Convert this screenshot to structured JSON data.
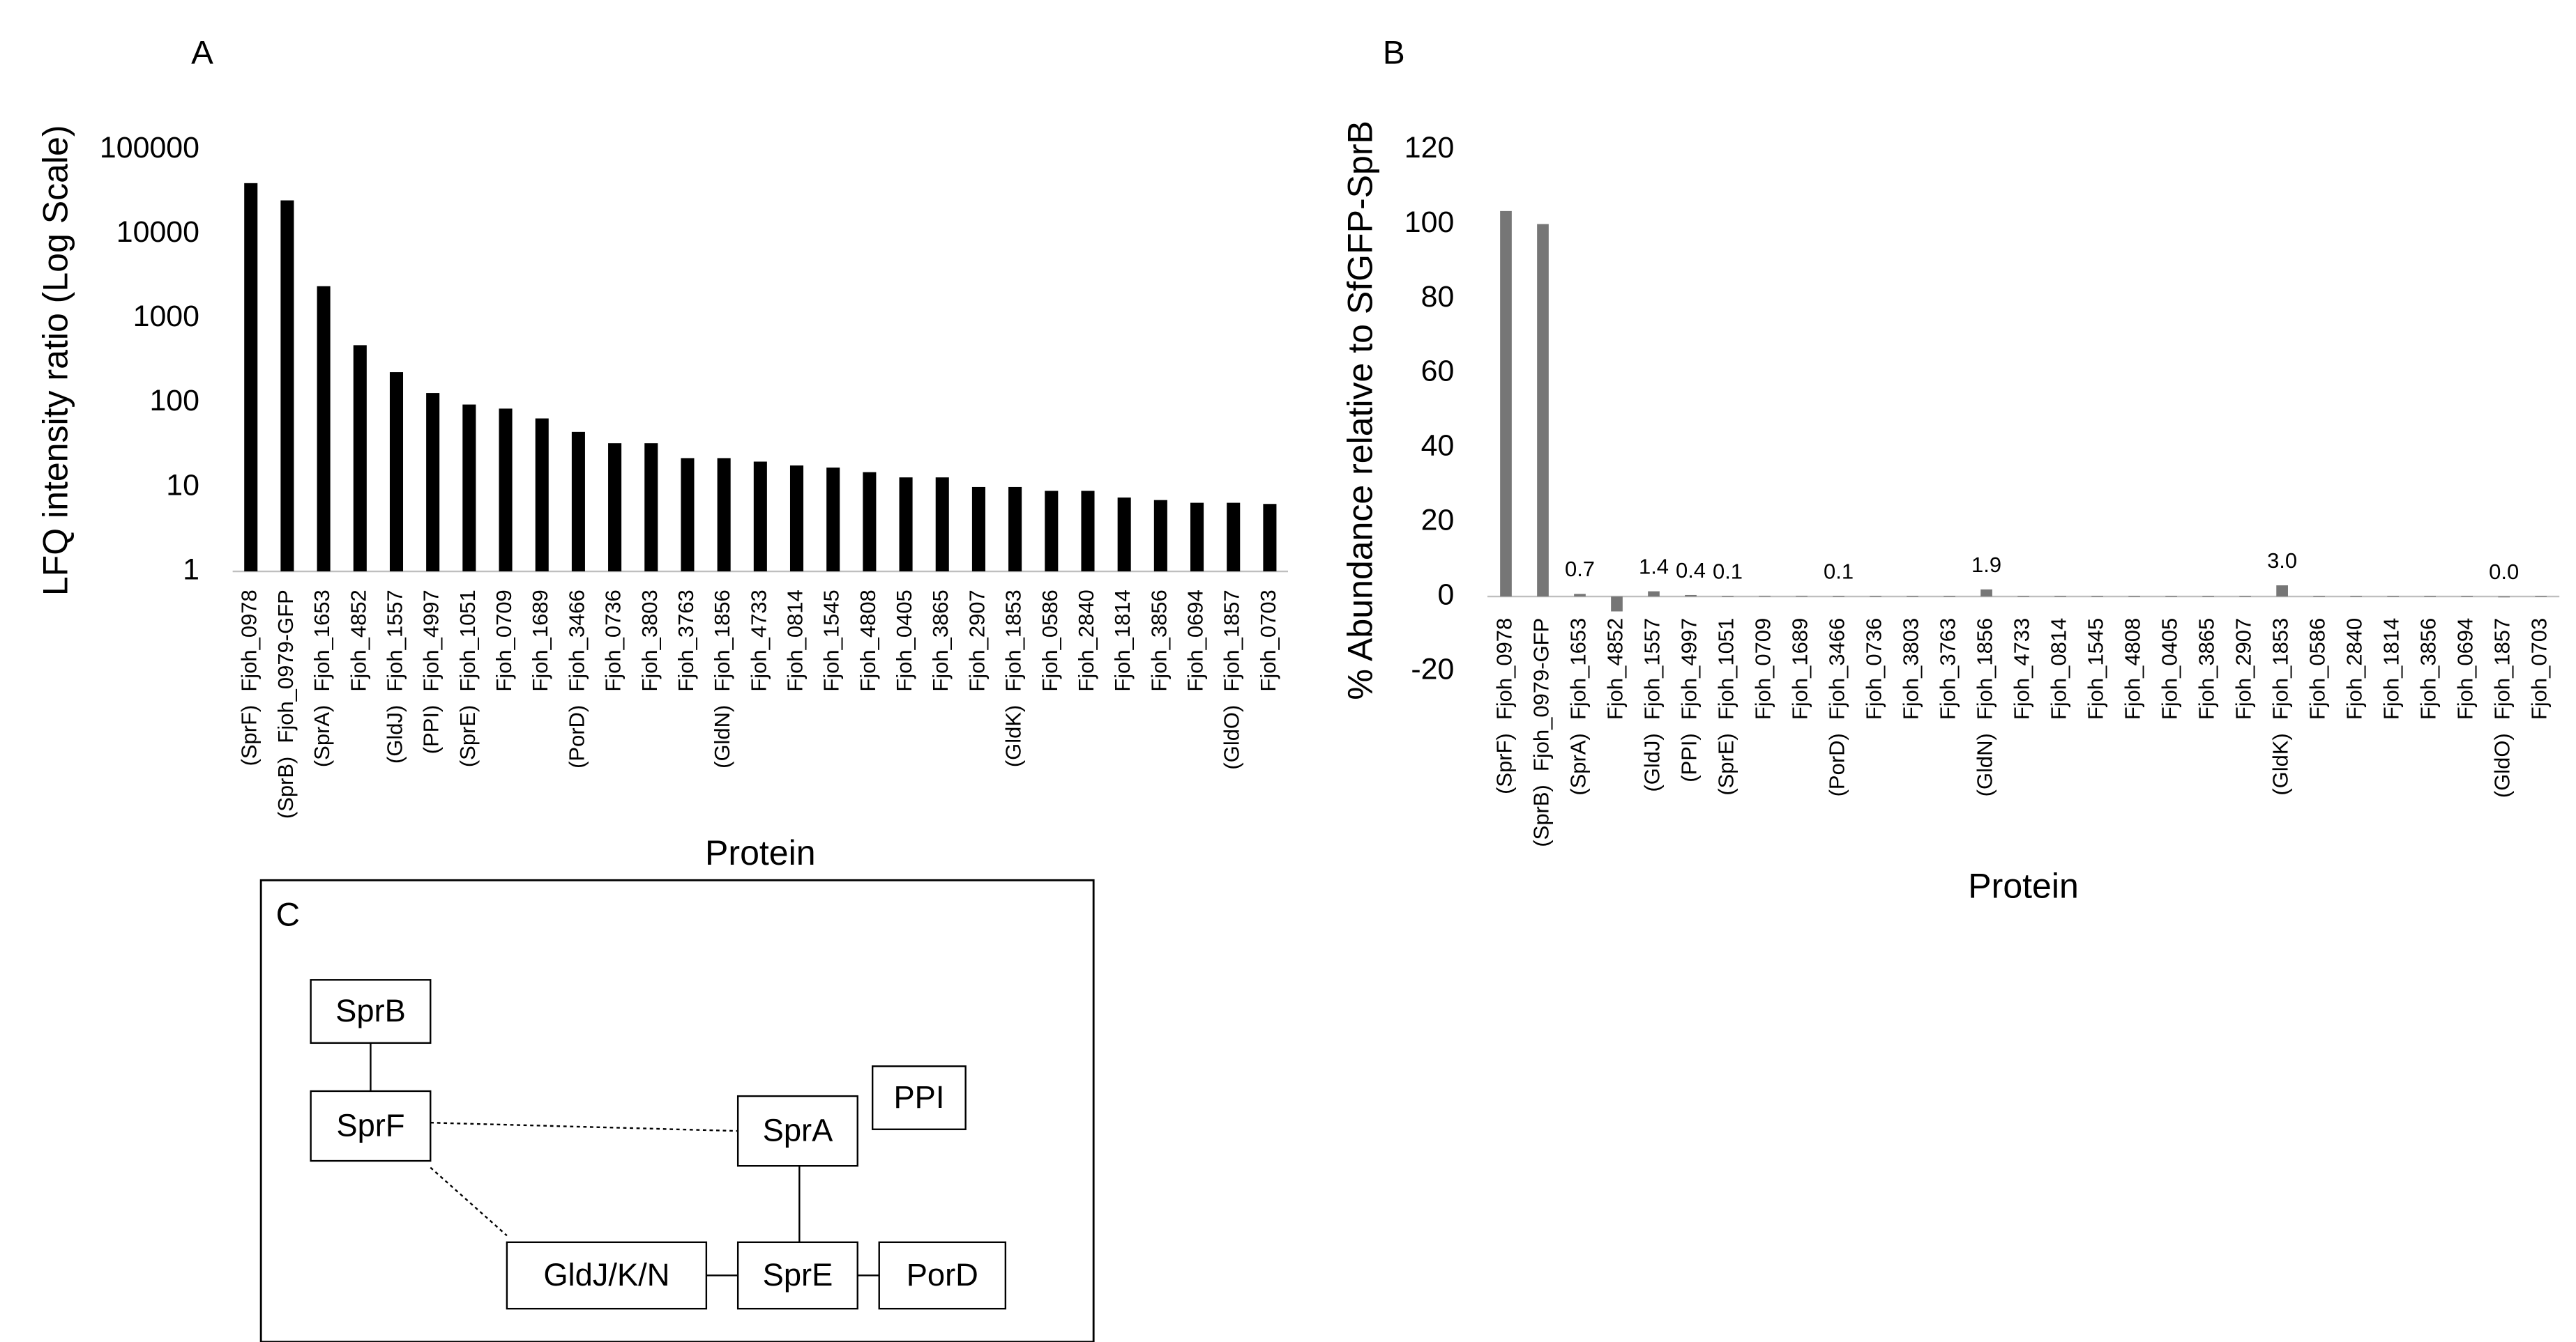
{
  "chart_data": [
    {
      "type": "bar",
      "panel": "A",
      "y_label": "LFQ intensity ratio (Log Scale)",
      "x_label": "Protein",
      "categories": [
        "Fjoh_0978",
        "Fjoh_0979-GFP",
        "Fjoh_1653",
        "Fjoh_4852",
        "Fjoh_1557",
        "Fjoh_4997",
        "Fjoh_1051",
        "Fjoh_0709",
        "Fjoh_1689",
        "Fjoh_3466",
        "Fjoh_0736",
        "Fjoh_3803",
        "Fjoh_3763",
        "Fjoh_1856",
        "Fjoh_4733",
        "Fjoh_0814",
        "Fjoh_1545",
        "Fjoh_4808",
        "Fjoh_0405",
        "Fjoh_3865",
        "Fjoh_2907",
        "Fjoh_1853",
        "Fjoh_0586",
        "Fjoh_2840",
        "Fjoh_1814",
        "Fjoh_3856",
        "Fjoh_0694",
        "Fjoh_1857",
        "Fjoh_0703"
      ],
      "category_aliases": [
        "(SprF)",
        "(SprB)",
        "(SprA)",
        null,
        "(GldJ)",
        "(PPI)",
        "(SprE)",
        null,
        null,
        "(PorD)",
        null,
        null,
        null,
        "(GldN)",
        null,
        null,
        null,
        null,
        null,
        null,
        null,
        "(GldK)",
        null,
        null,
        null,
        null,
        null,
        "(GldO)",
        null
      ],
      "values": [
        40000,
        25000,
        2400,
        480,
        230,
        130,
        95,
        85,
        65,
        45,
        33,
        33,
        22,
        22,
        20,
        18,
        17,
        15,
        13,
        13,
        10,
        10,
        9,
        9,
        7.5,
        7,
        6.5,
        6.5,
        6.3
      ],
      "color": "#000000",
      "log_scale": true,
      "ylim": [
        1,
        100000
      ],
      "yticks": [
        1,
        10,
        100,
        1000,
        10000,
        100000
      ]
    },
    {
      "type": "bar",
      "panel": "B",
      "y_label": "% Abundance relative to SfGFP-SprB",
      "x_label": "Protein",
      "categories": [
        "Fjoh_0978",
        "Fjoh_0979-GFP",
        "Fjoh_1653",
        "Fjoh_4852",
        "Fjoh_1557",
        "Fjoh_4997",
        "Fjoh_1051",
        "Fjoh_0709",
        "Fjoh_1689",
        "Fjoh_3466",
        "Fjoh_0736",
        "Fjoh_3803",
        "Fjoh_3763",
        "Fjoh_1856",
        "Fjoh_4733",
        "Fjoh_0814",
        "Fjoh_1545",
        "Fjoh_4808",
        "Fjoh_0405",
        "Fjoh_3865",
        "Fjoh_2907",
        "Fjoh_1853",
        "Fjoh_0586",
        "Fjoh_2840",
        "Fjoh_1814",
        "Fjoh_3856",
        "Fjoh_0694",
        "Fjoh_1857",
        "Fjoh_0703"
      ],
      "category_aliases": [
        "(SprF)",
        "(SprB)",
        "(SprA)",
        null,
        "(GldJ)",
        "(PPI)",
        "(SprE)",
        null,
        null,
        "(PorD)",
        null,
        null,
        null,
        "(GldN)",
        null,
        null,
        null,
        null,
        null,
        null,
        null,
        "(GldK)",
        null,
        null,
        null,
        null,
        null,
        "(GldO)",
        null
      ],
      "values": [
        103.5,
        100,
        0.7,
        -4,
        1.4,
        0.4,
        0.1,
        0.2,
        0.2,
        0.1,
        0.1,
        0.1,
        0.1,
        1.9,
        0.1,
        0.1,
        0.1,
        0.1,
        0.1,
        0.1,
        0.1,
        3.0,
        0.1,
        0.1,
        0.1,
        0.1,
        0.1,
        0.0,
        0.1
      ],
      "value_labels": [
        null,
        null,
        "0.7",
        null,
        "1.4",
        "0.4",
        "0.1",
        null,
        null,
        "0.1",
        null,
        null,
        null,
        "1.9",
        null,
        null,
        null,
        null,
        null,
        null,
        null,
        "3.0",
        null,
        null,
        null,
        null,
        null,
        "0.0",
        null
      ],
      "color": "#767676",
      "log_scale": false,
      "ylim": [
        -20,
        120
      ],
      "yticks": [
        -20,
        0,
        20,
        40,
        60,
        80,
        100,
        120
      ]
    }
  ],
  "diagram": {
    "panel": "C",
    "nodes": [
      {
        "label": "SprB"
      },
      {
        "label": "SprF"
      },
      {
        "label": "SprA"
      },
      {
        "label": "PPI"
      },
      {
        "label": "GldJ/K/N"
      },
      {
        "label": "SprE"
      },
      {
        "label": "PorD"
      }
    ]
  }
}
